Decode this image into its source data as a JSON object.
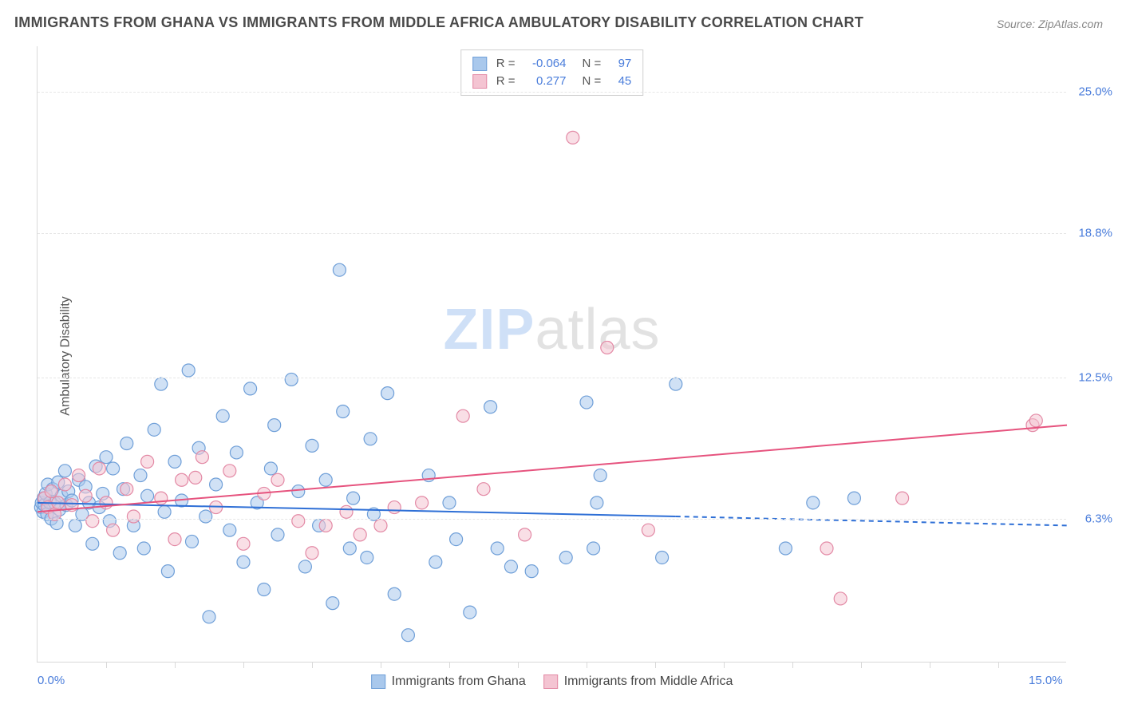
{
  "title": "IMMIGRANTS FROM GHANA VS IMMIGRANTS FROM MIDDLE AFRICA AMBULATORY DISABILITY CORRELATION CHART",
  "source": "Source: ZipAtlas.com",
  "ylabel": "Ambulatory Disability",
  "watermark_a": "ZIP",
  "watermark_b": "atlas",
  "chart": {
    "type": "scatter",
    "xlim": [
      0,
      15
    ],
    "ylim": [
      0,
      27
    ],
    "grid_color": "#e6e6e6",
    "background_color": "#ffffff",
    "yticks": [
      {
        "v": 6.3,
        "label": "6.3%"
      },
      {
        "v": 12.5,
        "label": "12.5%"
      },
      {
        "v": 18.8,
        "label": "18.8%"
      },
      {
        "v": 25.0,
        "label": "25.0%"
      }
    ],
    "xticks_minor": [
      1,
      2,
      3,
      4,
      5,
      6,
      7,
      8,
      9,
      10,
      11,
      12,
      13,
      14
    ],
    "xtick_labels": [
      {
        "v": 0,
        "label": "0.0%",
        "align": "left"
      },
      {
        "v": 15,
        "label": "15.0%",
        "align": "right"
      }
    ],
    "series": [
      {
        "name": "Immigrants from Ghana",
        "color_fill": "#a9c8ec",
        "color_stroke": "#6f9fd8",
        "marker_radius": 8,
        "R": "-0.064",
        "N": "97",
        "trend": {
          "x1": 0,
          "y1": 7.0,
          "x2": 9.3,
          "y2": 6.4,
          "dash_x2": 15,
          "dash_y2": 6.0,
          "color": "#2e6fd6",
          "width": 2
        },
        "points": [
          [
            0.05,
            6.8
          ],
          [
            0.06,
            7.0
          ],
          [
            0.08,
            6.6
          ],
          [
            0.09,
            7.2
          ],
          [
            0.1,
            6.9
          ],
          [
            0.12,
            7.4
          ],
          [
            0.14,
            6.5
          ],
          [
            0.15,
            7.8
          ],
          [
            0.18,
            7.0
          ],
          [
            0.2,
            6.3
          ],
          [
            0.22,
            7.6
          ],
          [
            0.25,
            7.0
          ],
          [
            0.28,
            6.1
          ],
          [
            0.3,
            7.9
          ],
          [
            0.32,
            6.7
          ],
          [
            0.35,
            7.3
          ],
          [
            0.4,
            8.4
          ],
          [
            0.42,
            6.9
          ],
          [
            0.45,
            7.5
          ],
          [
            0.5,
            7.1
          ],
          [
            0.55,
            6.0
          ],
          [
            0.6,
            8.0
          ],
          [
            0.65,
            6.5
          ],
          [
            0.7,
            7.7
          ],
          [
            0.75,
            7.0
          ],
          [
            0.8,
            5.2
          ],
          [
            0.85,
            8.6
          ],
          [
            0.9,
            6.8
          ],
          [
            0.95,
            7.4
          ],
          [
            1.0,
            9.0
          ],
          [
            1.05,
            6.2
          ],
          [
            1.1,
            8.5
          ],
          [
            1.2,
            4.8
          ],
          [
            1.25,
            7.6
          ],
          [
            1.3,
            9.6
          ],
          [
            1.4,
            6.0
          ],
          [
            1.5,
            8.2
          ],
          [
            1.55,
            5.0
          ],
          [
            1.6,
            7.3
          ],
          [
            1.7,
            10.2
          ],
          [
            1.8,
            12.2
          ],
          [
            1.85,
            6.6
          ],
          [
            1.9,
            4.0
          ],
          [
            2.0,
            8.8
          ],
          [
            2.1,
            7.1
          ],
          [
            2.2,
            12.8
          ],
          [
            2.25,
            5.3
          ],
          [
            2.35,
            9.4
          ],
          [
            2.45,
            6.4
          ],
          [
            2.5,
            2.0
          ],
          [
            2.6,
            7.8
          ],
          [
            2.7,
            10.8
          ],
          [
            2.8,
            5.8
          ],
          [
            2.9,
            9.2
          ],
          [
            3.0,
            4.4
          ],
          [
            3.1,
            12.0
          ],
          [
            3.2,
            7.0
          ],
          [
            3.3,
            3.2
          ],
          [
            3.4,
            8.5
          ],
          [
            3.45,
            10.4
          ],
          [
            3.5,
            5.6
          ],
          [
            3.7,
            12.4
          ],
          [
            3.8,
            7.5
          ],
          [
            3.9,
            4.2
          ],
          [
            4.0,
            9.5
          ],
          [
            4.1,
            6.0
          ],
          [
            4.2,
            8.0
          ],
          [
            4.3,
            2.6
          ],
          [
            4.4,
            17.2
          ],
          [
            4.45,
            11.0
          ],
          [
            4.55,
            5.0
          ],
          [
            4.6,
            7.2
          ],
          [
            4.8,
            4.6
          ],
          [
            4.85,
            9.8
          ],
          [
            4.9,
            6.5
          ],
          [
            5.1,
            11.8
          ],
          [
            5.2,
            3.0
          ],
          [
            5.4,
            1.2
          ],
          [
            5.7,
            8.2
          ],
          [
            5.8,
            4.4
          ],
          [
            6.0,
            7.0
          ],
          [
            6.1,
            5.4
          ],
          [
            6.3,
            2.2
          ],
          [
            6.6,
            11.2
          ],
          [
            6.7,
            5.0
          ],
          [
            6.9,
            4.2
          ],
          [
            7.2,
            4.0
          ],
          [
            7.7,
            4.6
          ],
          [
            8.0,
            11.4
          ],
          [
            8.1,
            5.0
          ],
          [
            8.15,
            7.0
          ],
          [
            8.2,
            8.2
          ],
          [
            9.1,
            4.6
          ],
          [
            9.3,
            12.2
          ],
          [
            10.9,
            5.0
          ],
          [
            11.3,
            7.0
          ],
          [
            11.9,
            7.2
          ]
        ]
      },
      {
        "name": "Immigrants from Middle Africa",
        "color_fill": "#f4c4d2",
        "color_stroke": "#e389a5",
        "marker_radius": 8,
        "R": "0.277",
        "N": "45",
        "trend": {
          "x1": 0,
          "y1": 6.6,
          "x2": 15,
          "y2": 10.4,
          "color": "#e6537e",
          "width": 2
        },
        "points": [
          [
            0.1,
            7.2
          ],
          [
            0.15,
            6.8
          ],
          [
            0.2,
            7.5
          ],
          [
            0.25,
            6.5
          ],
          [
            0.3,
            7.0
          ],
          [
            0.4,
            7.8
          ],
          [
            0.5,
            6.9
          ],
          [
            0.6,
            8.2
          ],
          [
            0.7,
            7.3
          ],
          [
            0.8,
            6.2
          ],
          [
            0.9,
            8.5
          ],
          [
            1.0,
            7.0
          ],
          [
            1.1,
            5.8
          ],
          [
            1.3,
            7.6
          ],
          [
            1.4,
            6.4
          ],
          [
            1.6,
            8.8
          ],
          [
            1.8,
            7.2
          ],
          [
            2.0,
            5.4
          ],
          [
            2.1,
            8.0
          ],
          [
            2.3,
            8.1
          ],
          [
            2.4,
            9.0
          ],
          [
            2.6,
            6.8
          ],
          [
            2.8,
            8.4
          ],
          [
            3.0,
            5.2
          ],
          [
            3.3,
            7.4
          ],
          [
            3.5,
            8.0
          ],
          [
            3.8,
            6.2
          ],
          [
            4.0,
            4.8
          ],
          [
            4.2,
            6.0
          ],
          [
            4.5,
            6.6
          ],
          [
            4.7,
            5.6
          ],
          [
            5.0,
            6.0
          ],
          [
            5.2,
            6.8
          ],
          [
            5.6,
            7.0
          ],
          [
            6.2,
            10.8
          ],
          [
            6.5,
            7.6
          ],
          [
            7.1,
            5.6
          ],
          [
            7.8,
            23.0
          ],
          [
            8.3,
            13.8
          ],
          [
            8.9,
            5.8
          ],
          [
            11.5,
            5.0
          ],
          [
            11.7,
            2.8
          ],
          [
            12.6,
            7.2
          ],
          [
            14.5,
            10.4
          ],
          [
            14.55,
            10.6
          ]
        ]
      }
    ],
    "legend_bottom": [
      {
        "label": "Immigrants from Ghana",
        "fill": "#a9c8ec",
        "stroke": "#6f9fd8"
      },
      {
        "label": "Immigrants from Middle Africa",
        "fill": "#f4c4d2",
        "stroke": "#e389a5"
      }
    ]
  }
}
